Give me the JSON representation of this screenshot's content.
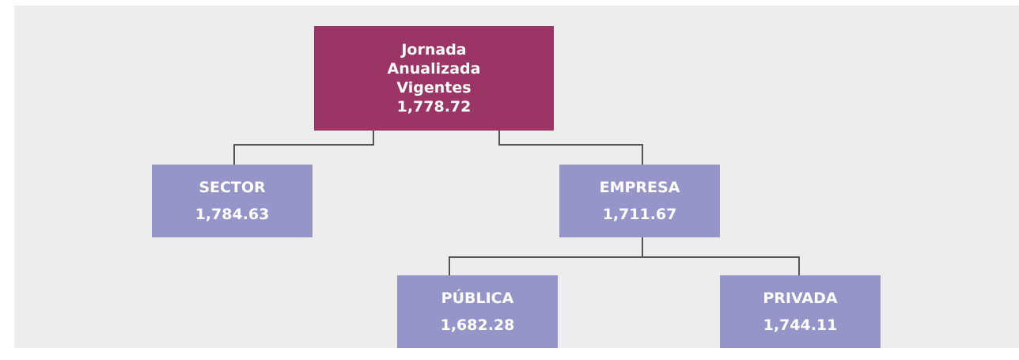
{
  "nodes": [
    {
      "label": "Jornada Anualizada Vigentes",
      "value": "1,778.72"
    },
    {
      "label": "SECTOR",
      "value": "1,784.63"
    },
    {
      "label": "EMPRESA",
      "value": "1,711.67"
    },
    {
      "label": "PÚBLICA",
      "value": "1,682.28"
    },
    {
      "label": "PRIVADA",
      "value": "1,744.11"
    }
  ]
}
